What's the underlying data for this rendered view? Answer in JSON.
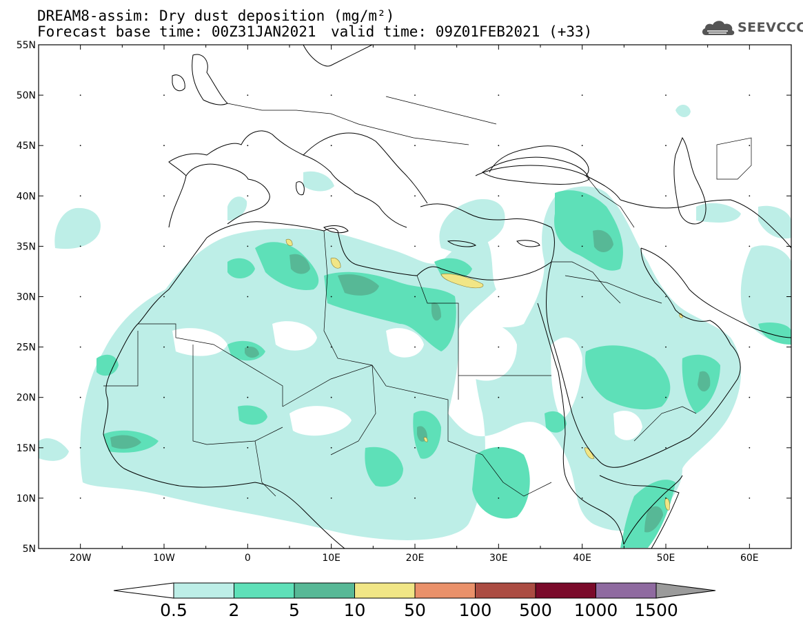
{
  "header": {
    "line1": "DREAM8-assim: Dry dust deposition (mg/m²)",
    "line2_base": "Forecast base time: 00Z31JAN2021",
    "line2_valid": "valid time: 09Z01FEB2021 (+33)"
  },
  "logo": {
    "icon": "cloud-logo-icon",
    "text": "SEEVCCC"
  },
  "map": {
    "lon_range": [
      -25,
      65
    ],
    "lat_range": [
      5,
      55
    ],
    "lon_ticks": [
      {
        "value": -20,
        "label": "20W"
      },
      {
        "value": -10,
        "label": "10W"
      },
      {
        "value": 0,
        "label": "0"
      },
      {
        "value": 10,
        "label": "10E"
      },
      {
        "value": 20,
        "label": "20E"
      },
      {
        "value": 30,
        "label": "30E"
      },
      {
        "value": 40,
        "label": "40E"
      },
      {
        "value": 50,
        "label": "50E"
      },
      {
        "value": 60,
        "label": "60E"
      }
    ],
    "lat_ticks": [
      {
        "value": 55,
        "label": "55N"
      },
      {
        "value": 50,
        "label": "50N"
      },
      {
        "value": 45,
        "label": "45N"
      },
      {
        "value": 40,
        "label": "40N"
      },
      {
        "value": 35,
        "label": "35N"
      },
      {
        "value": 30,
        "label": "30N"
      },
      {
        "value": 25,
        "label": "25N"
      },
      {
        "value": 20,
        "label": "20N"
      },
      {
        "value": 15,
        "label": "15N"
      },
      {
        "value": 10,
        "label": "10N"
      },
      {
        "value": 5,
        "label": "5N"
      }
    ],
    "grid_dots": true
  },
  "colorbar": {
    "labels": [
      "0.5",
      "2",
      "5",
      "10",
      "50",
      "100",
      "500",
      "1000",
      "1500"
    ],
    "colors": [
      "#bdeee7",
      "#5ee0b8",
      "#57b896",
      "#f1e686",
      "#ea916a",
      "#ab4c42",
      "#7a0a2a",
      "#8f6aa0"
    ],
    "extend_low_color": "#ffffff",
    "extend_high_color": "#9b9b9b"
  }
}
